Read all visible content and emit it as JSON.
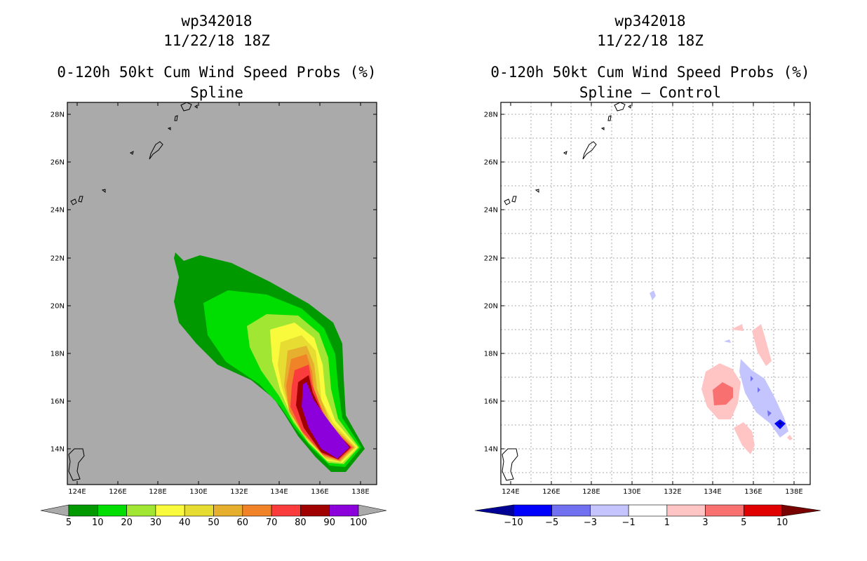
{
  "panels": [
    {
      "storm_id": "wp342018",
      "datetime": "11/22/18 18Z",
      "product": "0-120h 50kt Cum Wind Speed Probs (%)",
      "subtitle": "Spline",
      "colorbar": {
        "labels": [
          "5",
          "10",
          "20",
          "30",
          "40",
          "50",
          "60",
          "70",
          "80",
          "90",
          "100"
        ],
        "colors": [
          "#aaaaaa",
          "#009900",
          "#00dd00",
          "#a0e632",
          "#fafa3c",
          "#e6dc32",
          "#e6af2d",
          "#f08228",
          "#fa3c3c",
          "#a00000",
          "#8c00dc",
          "#aaaaaa"
        ]
      }
    },
    {
      "storm_id": "wp342018",
      "datetime": "11/22/18 18Z",
      "product": "0-120h 50kt Cum Wind Speed Probs (%)",
      "subtitle": "Spline – Control",
      "colorbar": {
        "labels": [
          "−10",
          "−5",
          "−3",
          "−1",
          "1",
          "3",
          "5",
          "10"
        ],
        "colors": [
          "#000096",
          "#0000ff",
          "#7070f0",
          "#c4c4ff",
          "#ffffff",
          "#ffc4c4",
          "#f87070",
          "#e00000",
          "#780000"
        ]
      }
    }
  ],
  "axes": {
    "lat_labels": [
      "28N",
      "26N",
      "24N",
      "22N",
      "20N",
      "18N",
      "16N",
      "14N"
    ],
    "lon_labels": [
      "124E",
      "126E",
      "128E",
      "130E",
      "132E",
      "134E",
      "136E",
      "138E"
    ]
  }
}
